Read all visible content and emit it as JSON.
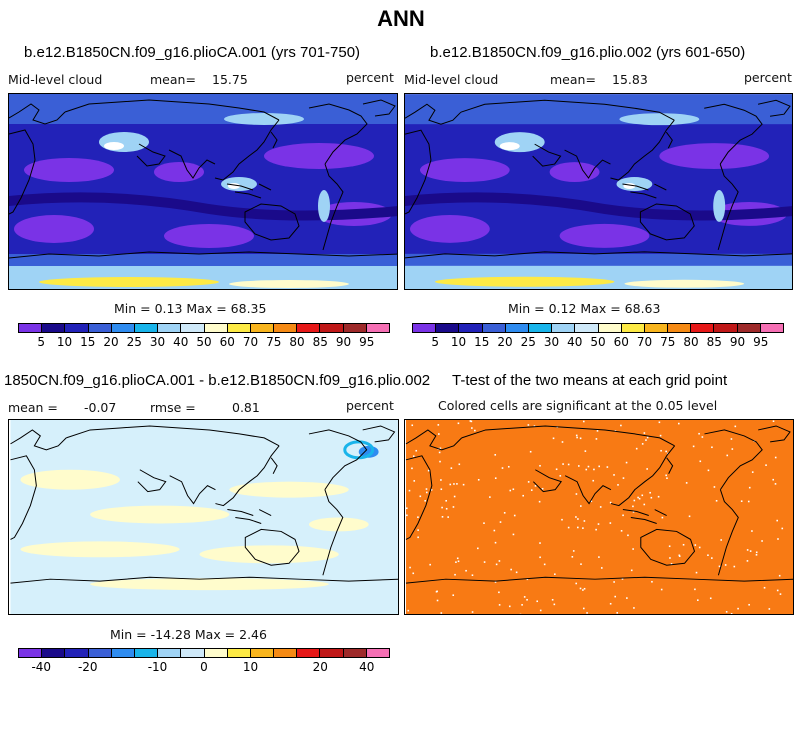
{
  "title": "ANN",
  "panels": [
    {
      "title": "b.e12.B1850CN.f09_g16.plioCA.001 (yrs 701-750)",
      "variable": "Mid-level cloud",
      "mean_label": "mean=",
      "mean_value": "15.75",
      "units": "percent",
      "stats": "Min =    0.13 Max =   68.35"
    },
    {
      "title": "b.e12.B1850CN.f09_g16.plio.002 (yrs 601-650)",
      "variable": "Mid-level cloud",
      "mean_label": "mean=",
      "mean_value": "15.83",
      "units": "percent",
      "stats": "Min =    0.12 Max =   68.63"
    },
    {
      "title": "1850CN.f09_g16.plioCA.001 - b.e12.B1850CN.f09_g16.plio.002",
      "mean_label": "mean =",
      "mean_value": "-0.07",
      "rmse_label": "rmse =",
      "rmse_value": "0.81",
      "units": "percent",
      "stats": "Min = -14.28 Max =    2.46"
    },
    {
      "title": "T-test of the two means at each grid point",
      "subtitle": "Colored cells are significant at the 0.05 level"
    }
  ],
  "colorbars": {
    "cloud": {
      "colors": [
        "#7a33e6",
        "#1a0a8a",
        "#2222b8",
        "#3a5fd6",
        "#2f8cf0",
        "#19b4ea",
        "#9fd3f5",
        "#cfe9f9",
        "#fffccc",
        "#fdea45",
        "#f8b51e",
        "#f58a14",
        "#e61818",
        "#c01818",
        "#9e2a2a",
        "#f56fb4"
      ],
      "labels": [
        "5",
        "10",
        "15",
        "20",
        "25",
        "30",
        "40",
        "50",
        "60",
        "70",
        "75",
        "80",
        "85",
        "90",
        "95"
      ]
    },
    "diff": {
      "colors": [
        "#7a33e6",
        "#1a0a8a",
        "#2222b8",
        "#3a5fd6",
        "#2f8cf0",
        "#19b4ea",
        "#9fd3f5",
        "#cfe9f9",
        "#fffccc",
        "#fdea45",
        "#f8b51e",
        "#f58a14",
        "#e61818",
        "#c01818",
        "#9e2a2a",
        "#f56fb4"
      ],
      "labels": [
        "-40",
        "-20",
        "-10",
        "0",
        "10",
        "20",
        "40"
      ]
    }
  },
  "map_colors": {
    "ocean_deep": "#7a33e6",
    "dark_blue": "#1a0a8a",
    "blue": "#2222b8",
    "mid_blue": "#3a5fd6",
    "light_blue": "#9fd3f5",
    "pale_cyan": "#d6f0fb",
    "pale_yellow": "#fffccc",
    "yellow": "#fdea45",
    "orange": "#f87a14",
    "white": "#ffffff",
    "coast": "#000000"
  }
}
